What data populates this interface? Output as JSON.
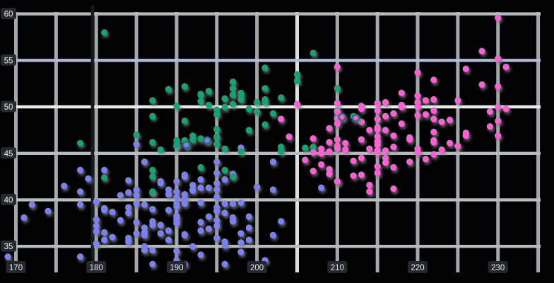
{
  "chart_data": {
    "type": "scatter",
    "title": "",
    "xlabel": "",
    "ylabel": "",
    "grid": true,
    "legend": "none",
    "x_ticks": [
      170,
      180,
      190,
      200,
      210,
      220,
      230
    ],
    "y_ticks": [
      35,
      40,
      45,
      50,
      55,
      60
    ],
    "grid_step": 5,
    "x_grid_range": [
      170,
      235
    ],
    "y_grid_range": [
      35,
      60
    ],
    "xlim": [
      168.9,
      235.3
    ],
    "ylim": [
      32.2,
      60.2
    ],
    "special_gridlines": [
      {
        "axis": "y",
        "value": 55,
        "color": "#b3b9da"
      },
      {
        "axis": "y",
        "value": 50,
        "color": "#e8ebec"
      },
      {
        "axis": "x",
        "value": 205,
        "color": "#dde1e2"
      },
      {
        "axis": "x",
        "value": 180,
        "color": "#171a21",
        "extra": true
      }
    ],
    "series": [
      {
        "name": "blue",
        "color": "#7d81ee",
        "points": [
          [
            181,
            39.1
          ],
          [
            186,
            39.5
          ],
          [
            195,
            40.3
          ],
          [
            193,
            36.7
          ],
          [
            190,
            39.3
          ],
          [
            181,
            38.9
          ],
          [
            195,
            39.2
          ],
          [
            193,
            34.1
          ],
          [
            190,
            42.0
          ],
          [
            186,
            34.6
          ],
          [
            180,
            36.6
          ],
          [
            182,
            38.7
          ],
          [
            191,
            42.5
          ],
          [
            198,
            34.4
          ],
          [
            185,
            46.0
          ],
          [
            195,
            37.8
          ],
          [
            197,
            37.7
          ],
          [
            184,
            35.9
          ],
          [
            194,
            38.2
          ],
          [
            174,
            38.8
          ],
          [
            180,
            35.3
          ],
          [
            189,
            40.6
          ],
          [
            185,
            40.5
          ],
          [
            180,
            37.9
          ],
          [
            183,
            40.5
          ],
          [
            172,
            39.5
          ],
          [
            180,
            37.2
          ],
          [
            178,
            39.5
          ],
          [
            178,
            40.9
          ],
          [
            188,
            36.4
          ],
          [
            184,
            39.2
          ],
          [
            195,
            38.8
          ],
          [
            196,
            42.2
          ],
          [
            190,
            37.6
          ],
          [
            180,
            39.8
          ],
          [
            181,
            36.5
          ],
          [
            184,
            40.8
          ],
          [
            182,
            36.0
          ],
          [
            195,
            44.1
          ],
          [
            186,
            37.0
          ],
          [
            196,
            39.6
          ],
          [
            185,
            41.1
          ],
          [
            190,
            37.5
          ],
          [
            179,
            42.3
          ],
          [
            190,
            39.6
          ],
          [
            191,
            40.1
          ],
          [
            186,
            35.0
          ],
          [
            188,
            42.0
          ],
          [
            190,
            34.5
          ],
          [
            200,
            41.4
          ],
          [
            187,
            39.0
          ],
          [
            191,
            40.6
          ],
          [
            186,
            36.5
          ],
          [
            193,
            37.6
          ],
          [
            181,
            35.7
          ],
          [
            194,
            41.3
          ],
          [
            185,
            37.6
          ],
          [
            195,
            41.1
          ],
          [
            185,
            36.4
          ],
          [
            192,
            41.6
          ],
          [
            184,
            35.5
          ],
          [
            192,
            41.1
          ],
          [
            195,
            35.9
          ],
          [
            188,
            41.8
          ],
          [
            190,
            33.5
          ],
          [
            198,
            39.7
          ],
          [
            190,
            45.8
          ],
          [
            196,
            35.5
          ],
          [
            197,
            42.8
          ],
          [
            190,
            40.9
          ],
          [
            195,
            37.2
          ],
          [
            191,
            36.2
          ],
          [
            184,
            42.1
          ],
          [
            187,
            34.6
          ],
          [
            195,
            42.9
          ],
          [
            189,
            36.7
          ],
          [
            196,
            35.1
          ],
          [
            187,
            37.3
          ],
          [
            193,
            41.3
          ],
          [
            191,
            36.3
          ],
          [
            194,
            36.9
          ],
          [
            190,
            38.3
          ],
          [
            189,
            38.9
          ],
          [
            189,
            35.7
          ],
          [
            202,
            41.1
          ],
          [
            185,
            39.6
          ],
          [
            186,
            36.2
          ],
          [
            187,
            40.8
          ],
          [
            208,
            41.3
          ],
          [
            190,
            40.3
          ],
          [
            196,
            33.1
          ],
          [
            178,
            43.2
          ],
          [
            192,
            35.0
          ],
          [
            192,
            41.0
          ],
          [
            203,
            37.7
          ],
          [
            183,
            37.8
          ],
          [
            190,
            37.9
          ],
          [
            193,
            39.7
          ],
          [
            184,
            38.6
          ],
          [
            199,
            38.2
          ],
          [
            190,
            38.1
          ],
          [
            181,
            43.2
          ],
          [
            197,
            38.1
          ],
          [
            198,
            45.6
          ],
          [
            191,
            39.7
          ],
          [
            193,
            42.2
          ],
          [
            197,
            39.6
          ],
          [
            191,
            42.7
          ],
          [
            196,
            38.6
          ],
          [
            188,
            37.3
          ],
          [
            199,
            35.7
          ],
          [
            189,
            41.1
          ],
          [
            187,
            37.7
          ],
          [
            198,
            36.4
          ],
          [
            176,
            41.5
          ],
          [
            202,
            44.1
          ],
          [
            186,
            44.1
          ],
          [
            199,
            37.0
          ],
          [
            191,
            39.6
          ],
          [
            195,
            41.8
          ],
          [
            191,
            33.1
          ],
          [
            210,
            42.0
          ],
          [
            187,
            33.1
          ],
          [
            178,
            33.9
          ],
          [
            169,
            33.9
          ],
          [
            201,
            33.5
          ],
          [
            202,
            36.2
          ],
          [
            198,
            35.4
          ],
          [
            171,
            38.1
          ]
        ]
      },
      {
        "name": "green",
        "color": "#14a274",
        "points": [
          [
            192,
            46.5
          ],
          [
            196,
            50.0
          ],
          [
            193,
            51.3
          ],
          [
            188,
            45.4
          ],
          [
            197,
            52.7
          ],
          [
            198,
            45.2
          ],
          [
            178,
            46.1
          ],
          [
            197,
            51.3
          ],
          [
            195,
            46.0
          ],
          [
            198,
            51.3
          ],
          [
            193,
            46.6
          ],
          [
            194,
            51.7
          ],
          [
            185,
            47.0
          ],
          [
            201,
            52.0
          ],
          [
            190,
            45.9
          ],
          [
            201,
            50.5
          ],
          [
            197,
            50.3
          ],
          [
            181,
            58.0
          ],
          [
            190,
            46.4
          ],
          [
            195,
            49.2
          ],
          [
            181,
            42.4
          ],
          [
            191,
            48.5
          ],
          [
            187,
            43.2
          ],
          [
            193,
            50.6
          ],
          [
            195,
            46.7
          ],
          [
            197,
            52.0
          ],
          [
            200,
            50.5
          ],
          [
            200,
            49.5
          ],
          [
            191,
            46.4
          ],
          [
            205,
            52.8
          ],
          [
            187,
            40.9
          ],
          [
            201,
            54.2
          ],
          [
            187,
            42.5
          ],
          [
            203,
            51.0
          ],
          [
            195,
            49.7
          ],
          [
            199,
            47.5
          ],
          [
            195,
            47.6
          ],
          [
            210,
            52.0
          ],
          [
            192,
            46.9
          ],
          [
            205,
            53.5
          ],
          [
            210,
            49.0
          ],
          [
            187,
            46.2
          ],
          [
            196,
            50.9
          ],
          [
            196,
            45.5
          ],
          [
            201,
            50.8
          ],
          [
            190,
            50.1
          ],
          [
            212,
            49.0
          ],
          [
            187,
            49.0
          ],
          [
            198,
            51.5
          ],
          [
            199,
            49.8
          ],
          [
            201,
            48.1
          ],
          [
            193,
            51.4
          ],
          [
            203,
            45.7
          ],
          [
            187,
            50.7
          ],
          [
            197,
            42.5
          ],
          [
            191,
            52.2
          ],
          [
            203,
            45.2
          ],
          [
            202,
            49.3
          ],
          [
            194,
            50.2
          ],
          [
            206,
            45.6
          ],
          [
            189,
            51.9
          ],
          [
            195,
            46.8
          ],
          [
            207,
            45.7
          ],
          [
            207,
            55.8
          ],
          [
            193,
            43.5
          ],
          [
            210,
            49.6
          ],
          [
            198,
            50.8
          ],
          [
            196,
            43.2
          ]
        ]
      },
      {
        "name": "pink",
        "color": "#f763d3",
        "points": [
          [
            211,
            46.1
          ],
          [
            230,
            50.0
          ],
          [
            210,
            48.7
          ],
          [
            218,
            50.0
          ],
          [
            215,
            47.6
          ],
          [
            210,
            46.5
          ],
          [
            211,
            45.4
          ],
          [
            219,
            46.7
          ],
          [
            209,
            43.3
          ],
          [
            215,
            46.8
          ],
          [
            214,
            40.9
          ],
          [
            216,
            49.0
          ],
          [
            214,
            45.5
          ],
          [
            213,
            48.4
          ],
          [
            210,
            45.8
          ],
          [
            217,
            49.3
          ],
          [
            210,
            42.0
          ],
          [
            221,
            49.2
          ],
          [
            209,
            46.2
          ],
          [
            222,
            48.7
          ],
          [
            218,
            50.2
          ],
          [
            215,
            45.1
          ],
          [
            213,
            46.5
          ],
          [
            215,
            46.3
          ],
          [
            215,
            42.9
          ],
          [
            216,
            44.5
          ],
          [
            215,
            47.8
          ],
          [
            210,
            48.2
          ],
          [
            220,
            50.0
          ],
          [
            222,
            47.3
          ],
          [
            209,
            42.8
          ],
          [
            207,
            45.1
          ],
          [
            230,
            59.6
          ],
          [
            220,
            49.1
          ],
          [
            223,
            48.4
          ],
          [
            212,
            42.6
          ],
          [
            221,
            44.4
          ],
          [
            216,
            44.0
          ],
          [
            215,
            48.7
          ],
          [
            213,
            42.7
          ],
          [
            215,
            49.6
          ],
          [
            215,
            45.3
          ],
          [
            216,
            50.5
          ],
          [
            215,
            43.6
          ],
          [
            210,
            45.5
          ],
          [
            220,
            50.5
          ],
          [
            222,
            44.9
          ],
          [
            209,
            45.2
          ],
          [
            207,
            46.6
          ],
          [
            230,
            48.5
          ],
          [
            220,
            45.1
          ],
          [
            213,
            50.1
          ],
          [
            219,
            46.5
          ],
          [
            208,
            45.0
          ],
          [
            208,
            43.8
          ],
          [
            208,
            45.5
          ],
          [
            214,
            41.6
          ],
          [
            217,
            41.2
          ],
          [
            210,
            50.4
          ],
          [
            216,
            45.3
          ],
          [
            222,
            46.2
          ],
          [
            217,
            45.7
          ],
          [
            210,
            54.3
          ],
          [
            225,
            45.8
          ],
          [
            213,
            49.8
          ],
          [
            215,
            46.2
          ],
          [
            210,
            49.5
          ],
          [
            217,
            43.5
          ],
          [
            221,
            50.7
          ],
          [
            209,
            47.7
          ],
          [
            222,
            46.4
          ],
          [
            218,
            48.2
          ],
          [
            213,
            44.5
          ],
          [
            215,
            50.4
          ],
          [
            215,
            45.9
          ],
          [
            222,
            50.8
          ],
          [
            216,
            47.5
          ],
          [
            217,
            46.9
          ],
          [
            220,
            45.5
          ],
          [
            222,
            49.6
          ],
          [
            214,
            47.5
          ],
          [
            224,
            48.6
          ],
          [
            226,
            47.2
          ],
          [
            228,
            56.0
          ],
          [
            230,
            55.2
          ],
          [
            231,
            54.3
          ],
          [
            228,
            52.4
          ],
          [
            230,
            52.2
          ],
          [
            231,
            49.8
          ],
          [
            229,
            49.5
          ],
          [
            230,
            46.9
          ],
          [
            220,
            53.7
          ],
          [
            222,
            52.9
          ],
          [
            226,
            54.1
          ],
          [
            218,
            51.5
          ],
          [
            220,
            51.2
          ],
          [
            225,
            50.7
          ],
          [
            203,
            48.7
          ],
          [
            205,
            50.3
          ],
          [
            204,
            46.8
          ],
          [
            206,
            44.3
          ],
          [
            207,
            43.1
          ],
          [
            212,
            44.2
          ],
          [
            219,
            44.1
          ],
          [
            224,
            46.1
          ],
          [
            223,
            45.4
          ],
          [
            226,
            46.9
          ],
          [
            229,
            47.9
          ]
        ]
      }
    ],
    "outlined_points": [
      {
        "series": "pink",
        "x": 210.6,
        "y": 48.9
      },
      {
        "series": "pink",
        "x": 212.3,
        "y": 48.8
      },
      {
        "series": "blue",
        "x": 193.8,
        "y": 46.4
      },
      {
        "series": "blue",
        "x": 191.2,
        "y": 45.9
      }
    ]
  },
  "style": {
    "background": "#020204",
    "grid_vertical": "#a3a8ab",
    "grid_horizontal": "#b6bbbe",
    "tick_text_color": "#e9ecef",
    "tick_chip_color": "#25282e",
    "marker_shadow": "#7a7a7a",
    "outline_stroke": "#2b6d7e"
  }
}
